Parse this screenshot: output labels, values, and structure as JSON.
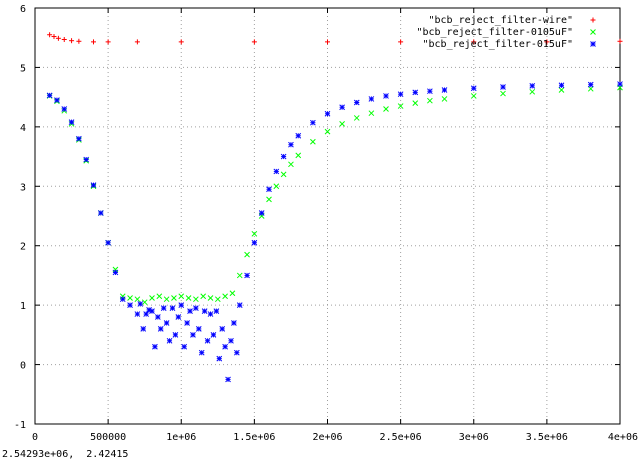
{
  "status_bar": {
    "coordinates": "2.54293e+06,  2.42415"
  },
  "colors": {
    "background": "#ffffff",
    "axes": "#000000",
    "grid": "#a0a0a0"
  },
  "chart_data": {
    "type": "scatter",
    "title": "",
    "xlabel": "",
    "ylabel": "",
    "xlim": [
      0,
      4000000
    ],
    "ylim": [
      -1,
      6
    ],
    "grid": true,
    "legend_position": "top-right",
    "x_ticks": [
      {
        "value": 0,
        "label": "0"
      },
      {
        "value": 500000,
        "label": "500000"
      },
      {
        "value": 1000000,
        "label": "1e+06"
      },
      {
        "value": 1500000,
        "label": "1.5e+06"
      },
      {
        "value": 2000000,
        "label": "2e+06"
      },
      {
        "value": 2500000,
        "label": "2.5e+06"
      },
      {
        "value": 3000000,
        "label": "3e+06"
      },
      {
        "value": 3500000,
        "label": "3.5e+06"
      },
      {
        "value": 4000000,
        "label": "4e+06"
      }
    ],
    "y_ticks": [
      {
        "value": -1,
        "label": "-1"
      },
      {
        "value": 0,
        "label": "0"
      },
      {
        "value": 1,
        "label": "1"
      },
      {
        "value": 2,
        "label": "2"
      },
      {
        "value": 3,
        "label": "3"
      },
      {
        "value": 4,
        "label": "4"
      },
      {
        "value": 5,
        "label": "5"
      },
      {
        "value": 6,
        "label": "6"
      }
    ],
    "series": [
      {
        "name": "\"bcb_reject_filter-wire\"",
        "color": "#ff0000",
        "marker": "plus",
        "x": [
          100000,
          130000,
          160000,
          200000,
          250000,
          300000,
          400000,
          500000,
          700000,
          1000000,
          1500000,
          2000000,
          2500000,
          3000000,
          3500000,
          4000000
        ],
        "y": [
          5.55,
          5.52,
          5.49,
          5.47,
          5.45,
          5.44,
          5.43,
          5.43,
          5.43,
          5.43,
          5.43,
          5.43,
          5.43,
          5.43,
          5.43,
          5.44
        ]
      },
      {
        "name": "\"bcb_reject_filter-0105uF\"",
        "color": "#00ff00",
        "marker": "x",
        "x": [
          100000,
          150000,
          200000,
          250000,
          300000,
          350000,
          400000,
          450000,
          500000,
          550000,
          600000,
          650000,
          700000,
          750000,
          800000,
          850000,
          900000,
          950000,
          1000000,
          1050000,
          1100000,
          1150000,
          1200000,
          1250000,
          1300000,
          1350000,
          1400000,
          1450000,
          1500000,
          1550000,
          1600000,
          1650000,
          1700000,
          1750000,
          1800000,
          1900000,
          2000000,
          2100000,
          2200000,
          2300000,
          2400000,
          2500000,
          2600000,
          2700000,
          2800000,
          3000000,
          3200000,
          3400000,
          3600000,
          3800000,
          4000000
        ],
        "y": [
          4.52,
          4.43,
          4.27,
          4.05,
          3.78,
          3.43,
          3.0,
          2.55,
          2.05,
          1.6,
          1.15,
          1.12,
          1.1,
          1.05,
          1.12,
          1.15,
          1.1,
          1.12,
          1.15,
          1.12,
          1.1,
          1.15,
          1.12,
          1.1,
          1.15,
          1.2,
          1.5,
          1.85,
          2.2,
          2.5,
          2.78,
          3.0,
          3.2,
          3.37,
          3.52,
          3.75,
          3.92,
          4.05,
          4.15,
          4.23,
          4.3,
          4.35,
          4.4,
          4.44,
          4.47,
          4.52,
          4.56,
          4.59,
          4.62,
          4.64,
          4.66
        ]
      },
      {
        "name": "\"bcb_reject_filter-015uF\"",
        "color": "#0000ff",
        "marker": "star",
        "x": [
          100000,
          150000,
          200000,
          250000,
          300000,
          350000,
          400000,
          450000,
          500000,
          550000,
          600000,
          650000,
          700000,
          720000,
          740000,
          760000,
          780000,
          800000,
          820000,
          840000,
          860000,
          880000,
          900000,
          920000,
          940000,
          960000,
          980000,
          1000000,
          1020000,
          1040000,
          1060000,
          1080000,
          1100000,
          1120000,
          1140000,
          1160000,
          1180000,
          1200000,
          1220000,
          1240000,
          1260000,
          1280000,
          1300000,
          1320000,
          1340000,
          1360000,
          1380000,
          1400000,
          1450000,
          1500000,
          1550000,
          1600000,
          1650000,
          1700000,
          1750000,
          1800000,
          1900000,
          2000000,
          2100000,
          2200000,
          2300000,
          2400000,
          2500000,
          2600000,
          2700000,
          2800000,
          3000000,
          3200000,
          3400000,
          3600000,
          3800000,
          4000000
        ],
        "y": [
          4.53,
          4.45,
          4.3,
          4.08,
          3.8,
          3.45,
          3.02,
          2.55,
          2.05,
          1.55,
          1.1,
          1.0,
          0.85,
          1.02,
          0.6,
          0.85,
          0.92,
          0.9,
          0.3,
          0.8,
          0.6,
          0.95,
          0.7,
          0.4,
          0.95,
          0.5,
          0.8,
          1.0,
          0.3,
          0.7,
          0.9,
          0.5,
          0.95,
          0.6,
          0.2,
          0.9,
          0.4,
          0.85,
          0.5,
          0.9,
          0.1,
          0.6,
          0.3,
          -0.25,
          0.4,
          0.7,
          0.2,
          1.0,
          1.5,
          2.05,
          2.55,
          2.95,
          3.25,
          3.5,
          3.7,
          3.85,
          4.07,
          4.22,
          4.33,
          4.41,
          4.47,
          4.52,
          4.55,
          4.58,
          4.6,
          4.62,
          4.65,
          4.67,
          4.69,
          4.7,
          4.71,
          4.72
        ]
      }
    ]
  }
}
